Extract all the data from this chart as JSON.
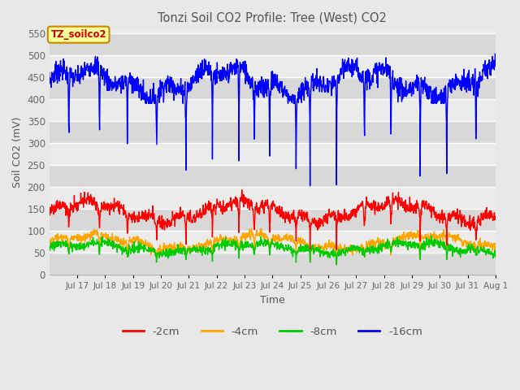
{
  "title": "Tonzi Soil CO2 Profile: Tree (West) CO2",
  "xlabel": "Time",
  "ylabel": "Soil CO2 (mV)",
  "ylim": [
    0,
    560
  ],
  "yticks": [
    0,
    50,
    100,
    150,
    200,
    250,
    300,
    350,
    400,
    450,
    500,
    550
  ],
  "legend_labels": [
    "-2cm",
    "-4cm",
    "-8cm",
    "-16cm"
  ],
  "legend_colors": [
    "#ff0000",
    "#ffa500",
    "#00cc00",
    "#0000ff"
  ],
  "annotation_text": "TZ_soilco2",
  "annotation_color": "#cc0000",
  "annotation_bg": "#ffff99",
  "annotation_border": "#cc8800",
  "background_color": "#e8e8e8",
  "plot_bg_light": "#ebebeb",
  "plot_bg_dark": "#d8d8d8",
  "grid_color": "#ffffff",
  "title_color": "#555555",
  "axis_label_color": "#555555",
  "tick_label_color": "#666666"
}
